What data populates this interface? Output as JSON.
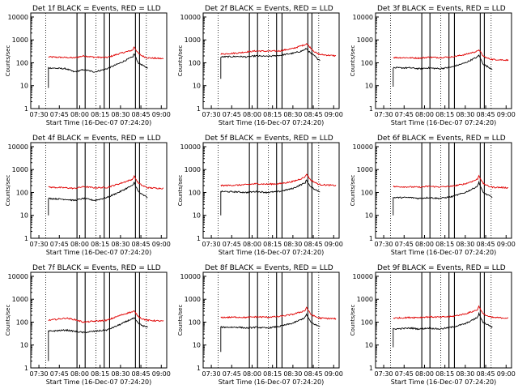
{
  "figure": {
    "ylabel": "Counts/sec",
    "xlabel": "Start Time (16-Dec-07 07:24:20)",
    "xticks": [
      "07:30",
      "07:45",
      "08:00",
      "08:15",
      "08:30",
      "08:45",
      "09:00"
    ],
    "yticks": [
      "1",
      "10",
      "100",
      "1000",
      "10000"
    ]
  },
  "chart_data": [
    {
      "type": "line",
      "title": "Det 1f BLACK = Events, RED = LLD",
      "xlabel": "Start Time (16-Dec-07 07:24:20)",
      "ylabel": "Counts/sec",
      "xlim": [
        "07:24",
        "09:04"
      ],
      "ylim": [
        1,
        15000
      ],
      "yscale": "log",
      "x": [
        "07:37",
        "07:50",
        "07:56",
        "08:03",
        "08:11",
        "08:20",
        "08:30",
        "08:36",
        "08:39",
        "08:40",
        "08:43",
        "08:46",
        "08:48",
        "08:50",
        "09:02"
      ],
      "series": [
        {
          "name": "RED = LLD",
          "color": "#e00000",
          "values": [
            180,
            170,
            165,
            200,
            175,
            170,
            260,
            320,
            360,
            500,
            260,
            200,
            180,
            165,
            150
          ]
        },
        {
          "name": "BLACK = Events",
          "color": "#000000",
          "values": [
            60,
            55,
            40,
            50,
            40,
            55,
            100,
            150,
            180,
            250,
            100,
            80,
            65,
            60,
            null
          ]
        }
      ],
      "vlines_solid": [
        "07:58",
        "08:04",
        "08:18",
        "08:22",
        "08:41",
        "08:44"
      ],
      "vlines_dotted": [
        "07:35",
        "08:12",
        "08:49"
      ],
      "segment_start": {
        "x": "07:37",
        "value": 8
      }
    },
    {
      "type": "line",
      "title": "Det 2f BLACK = Events, RED = LLD",
      "xlabel": "Start Time (16-Dec-07 07:24:20)",
      "ylabel": "Counts/sec",
      "xlim": [
        "07:24",
        "09:04"
      ],
      "ylim": [
        1,
        15000
      ],
      "yscale": "log",
      "x": [
        "07:37",
        "07:50",
        "07:56",
        "08:03",
        "08:11",
        "08:20",
        "08:30",
        "08:36",
        "08:39",
        "08:40",
        "08:43",
        "08:46",
        "08:48",
        "08:50",
        "09:02"
      ],
      "series": [
        {
          "name": "RED = LLD",
          "color": "#e00000",
          "values": [
            240,
            270,
            300,
            330,
            320,
            330,
            420,
            550,
            620,
            700,
            450,
            300,
            250,
            230,
            200
          ]
        },
        {
          "name": "BLACK = Events",
          "color": "#000000",
          "values": [
            180,
            190,
            180,
            200,
            190,
            210,
            260,
            320,
            380,
            420,
            260,
            200,
            150,
            130,
            null
          ]
        }
      ],
      "vlines_solid": [
        "07:58",
        "08:04",
        "08:18",
        "08:22",
        "08:41",
        "08:44"
      ],
      "vlines_dotted": [
        "07:35",
        "08:12",
        "08:49"
      ],
      "segment_start": {
        "x": "07:37",
        "value": 20
      }
    },
    {
      "type": "line",
      "title": "Det 3f BLACK = Events, RED = LLD",
      "xlabel": "Start Time (16-Dec-07 07:24:20)",
      "ylabel": "Counts/sec",
      "xlim": [
        "07:24",
        "09:04"
      ],
      "ylim": [
        1,
        15000
      ],
      "yscale": "log",
      "x": [
        "07:37",
        "07:50",
        "07:56",
        "08:03",
        "08:11",
        "08:20",
        "08:30",
        "08:36",
        "08:39",
        "08:40",
        "08:43",
        "08:46",
        "08:48",
        "08:50",
        "09:02"
      ],
      "series": [
        {
          "name": "RED = LLD",
          "color": "#e00000",
          "values": [
            170,
            165,
            160,
            175,
            170,
            180,
            230,
            290,
            320,
            380,
            200,
            160,
            150,
            140,
            130
          ]
        },
        {
          "name": "BLACK = Events",
          "color": "#000000",
          "values": [
            60,
            60,
            55,
            60,
            55,
            65,
            100,
            150,
            180,
            220,
            90,
            70,
            60,
            55,
            null
          ]
        }
      ],
      "vlines_solid": [
        "07:58",
        "08:04",
        "08:18",
        "08:22",
        "08:41",
        "08:44"
      ],
      "vlines_dotted": [
        "07:35",
        "08:12",
        "08:49"
      ],
      "segment_start": {
        "x": "07:37",
        "value": 9
      }
    },
    {
      "type": "line",
      "title": "Det 4f BLACK = Events, RED = LLD",
      "xlabel": "Start Time (16-Dec-07 07:24:20)",
      "ylabel": "Counts/sec",
      "xlim": [
        "07:24",
        "09:04"
      ],
      "ylim": [
        1,
        15000
      ],
      "yscale": "log",
      "x": [
        "07:37",
        "07:50",
        "07:56",
        "08:03",
        "08:11",
        "08:20",
        "08:30",
        "08:36",
        "08:39",
        "08:40",
        "08:43",
        "08:46",
        "08:48",
        "08:50",
        "09:02"
      ],
      "series": [
        {
          "name": "RED = LLD",
          "color": "#e00000",
          "values": [
            170,
            160,
            150,
            180,
            160,
            165,
            250,
            330,
            380,
            520,
            260,
            200,
            180,
            160,
            150
          ]
        },
        {
          "name": "BLACK = Events",
          "color": "#000000",
          "values": [
            55,
            50,
            45,
            55,
            45,
            60,
            110,
            170,
            200,
            280,
            110,
            80,
            70,
            60,
            null
          ]
        }
      ],
      "vlines_solid": [
        "07:58",
        "08:04",
        "08:18",
        "08:22",
        "08:41",
        "08:44"
      ],
      "vlines_dotted": [
        "07:35",
        "08:12",
        "08:49"
      ],
      "segment_start": {
        "x": "07:37",
        "value": 10
      }
    },
    {
      "type": "line",
      "title": "Det 5f BLACK = Events, RED = LLD",
      "xlabel": "Start Time (16-Dec-07 07:24:20)",
      "ylabel": "Counts/sec",
      "xlim": [
        "07:24",
        "09:04"
      ],
      "ylim": [
        1,
        15000
      ],
      "yscale": "log",
      "x": [
        "07:37",
        "07:50",
        "07:56",
        "08:03",
        "08:11",
        "08:20",
        "08:30",
        "08:36",
        "08:39",
        "08:40",
        "08:43",
        "08:46",
        "08:48",
        "08:50",
        "09:02"
      ],
      "series": [
        {
          "name": "RED = LLD",
          "color": "#e00000",
          "values": [
            200,
            210,
            220,
            240,
            230,
            240,
            300,
            400,
            480,
            650,
            350,
            280,
            240,
            220,
            200
          ]
        },
        {
          "name": "BLACK = Events",
          "color": "#000000",
          "values": [
            110,
            105,
            100,
            110,
            100,
            110,
            150,
            220,
            260,
            350,
            170,
            140,
            120,
            110,
            null
          ]
        }
      ],
      "vlines_solid": [
        "07:58",
        "08:04",
        "08:18",
        "08:22",
        "08:41",
        "08:44"
      ],
      "vlines_dotted": [
        "07:35",
        "08:12",
        "08:49"
      ],
      "segment_start": {
        "x": "07:37",
        "value": 10
      }
    },
    {
      "type": "line",
      "title": "Det 6f BLACK = Events, RED = LLD",
      "xlabel": "Start Time (16-Dec-07 07:24:20)",
      "ylabel": "Counts/sec",
      "xlim": [
        "07:24",
        "09:04"
      ],
      "ylim": [
        1,
        15000
      ],
      "yscale": "log",
      "x": [
        "07:37",
        "07:50",
        "07:56",
        "08:03",
        "08:11",
        "08:20",
        "08:30",
        "08:36",
        "08:39",
        "08:40",
        "08:43",
        "08:46",
        "08:48",
        "08:50",
        "09:02"
      ],
      "series": [
        {
          "name": "RED = LLD",
          "color": "#e00000",
          "values": [
            180,
            175,
            170,
            185,
            175,
            185,
            240,
            320,
            380,
            550,
            250,
            200,
            180,
            170,
            160
          ]
        },
        {
          "name": "BLACK = Events",
          "color": "#000000",
          "values": [
            60,
            60,
            55,
            60,
            55,
            65,
            100,
            150,
            190,
            280,
            100,
            80,
            70,
            60,
            null
          ]
        }
      ],
      "vlines_solid": [
        "07:58",
        "08:04",
        "08:18",
        "08:22",
        "08:41",
        "08:44"
      ],
      "vlines_dotted": [
        "07:35",
        "08:12",
        "08:49"
      ],
      "segment_start": {
        "x": "07:37",
        "value": 10
      }
    },
    {
      "type": "line",
      "title": "Det 7f BLACK = Events, RED = LLD",
      "xlabel": "Start Time (16-Dec-07 07:24:20)",
      "ylabel": "Counts/sec",
      "xlim": [
        "07:24",
        "09:04"
      ],
      "ylim": [
        1,
        15000
      ],
      "yscale": "log",
      "x": [
        "07:37",
        "07:50",
        "07:56",
        "08:03",
        "08:11",
        "08:20",
        "08:30",
        "08:36",
        "08:39",
        "08:40",
        "08:43",
        "08:46",
        "08:48",
        "08:50",
        "09:02"
      ],
      "series": [
        {
          "name": "RED = LLD",
          "color": "#e00000",
          "values": [
            120,
            150,
            130,
            100,
            110,
            120,
            200,
            260,
            280,
            300,
            180,
            140,
            130,
            120,
            110
          ]
        },
        {
          "name": "BLACK = Events",
          "color": "#000000",
          "values": [
            40,
            45,
            40,
            35,
            40,
            45,
            80,
            120,
            140,
            150,
            90,
            70,
            65,
            60,
            null
          ]
        }
      ],
      "vlines_solid": [
        "07:58",
        "08:04",
        "08:18",
        "08:22",
        "08:41",
        "08:44"
      ],
      "vlines_dotted": [
        "07:35",
        "08:12",
        "08:49"
      ],
      "segment_start": {
        "x": "07:37",
        "value": 2
      }
    },
    {
      "type": "line",
      "title": "Det 8f BLACK = Events, RED = LLD",
      "xlabel": "Start Time (16-Dec-07 07:24:20)",
      "ylabel": "Counts/sec",
      "xlim": [
        "07:24",
        "09:04"
      ],
      "ylim": [
        1,
        15000
      ],
      "yscale": "log",
      "x": [
        "07:37",
        "07:50",
        "07:56",
        "08:03",
        "08:11",
        "08:20",
        "08:30",
        "08:36",
        "08:39",
        "08:40",
        "08:43",
        "08:46",
        "08:48",
        "08:50",
        "09:02"
      ],
      "series": [
        {
          "name": "RED = LLD",
          "color": "#e00000",
          "values": [
            160,
            165,
            160,
            170,
            165,
            175,
            220,
            280,
            320,
            450,
            220,
            180,
            160,
            150,
            140
          ]
        },
        {
          "name": "BLACK = Events",
          "color": "#000000",
          "values": [
            60,
            60,
            55,
            60,
            55,
            65,
            90,
            130,
            160,
            220,
            100,
            80,
            70,
            65,
            null
          ]
        }
      ],
      "vlines_solid": [
        "07:58",
        "08:04",
        "08:18",
        "08:22",
        "08:41",
        "08:44"
      ],
      "vlines_dotted": [
        "07:35",
        "08:12",
        "08:49"
      ],
      "segment_start": {
        "x": "07:37",
        "value": 5
      }
    },
    {
      "type": "line",
      "title": "Det 9f BLACK = Events, RED = LLD",
      "xlabel": "Start Time (16-Dec-07 07:24:20)",
      "ylabel": "Counts/sec",
      "xlim": [
        "07:24",
        "09:04"
      ],
      "ylim": [
        1,
        15000
      ],
      "yscale": "log",
      "x": [
        "07:37",
        "07:50",
        "07:56",
        "08:03",
        "08:11",
        "08:20",
        "08:30",
        "08:36",
        "08:39",
        "08:40",
        "08:43",
        "08:46",
        "08:48",
        "08:50",
        "09:02"
      ],
      "series": [
        {
          "name": "RED = LLD",
          "color": "#e00000",
          "values": [
            150,
            160,
            160,
            170,
            165,
            175,
            230,
            300,
            350,
            500,
            230,
            190,
            170,
            160,
            150
          ]
        },
        {
          "name": "BLACK = Events",
          "color": "#000000",
          "values": [
            50,
            55,
            50,
            55,
            50,
            60,
            85,
            130,
            160,
            230,
            100,
            80,
            70,
            60,
            null
          ]
        }
      ],
      "vlines_solid": [
        "07:58",
        "08:04",
        "08:18",
        "08:22",
        "08:41",
        "08:44"
      ],
      "vlines_dotted": [
        "07:35",
        "08:12",
        "08:49"
      ],
      "segment_start": {
        "x": "07:37",
        "value": 8
      }
    }
  ]
}
